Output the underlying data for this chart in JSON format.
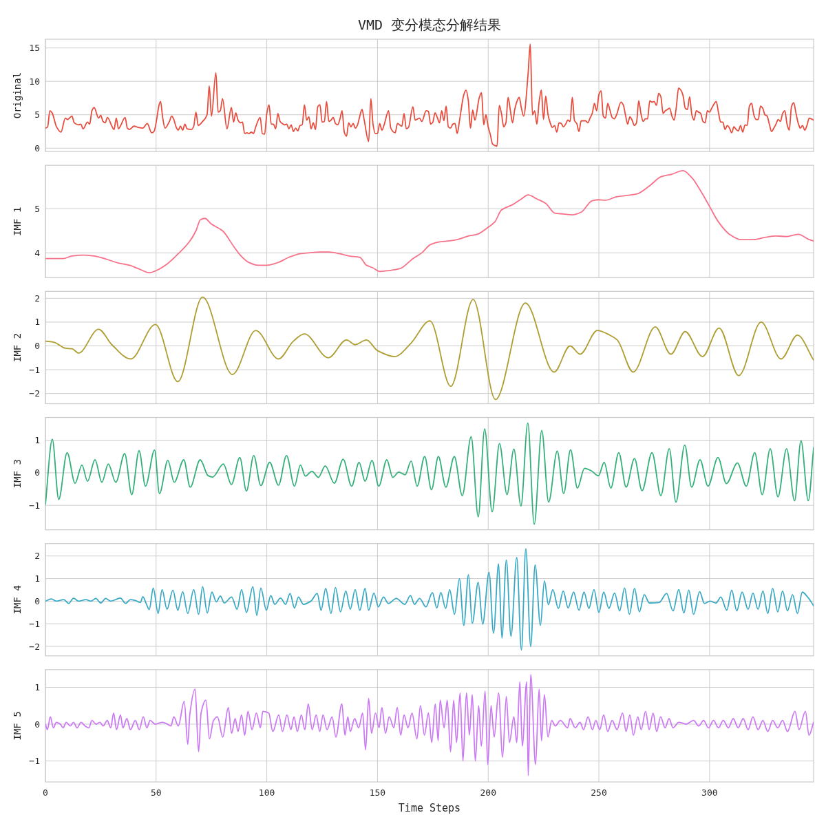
{
  "chart_data": [
    {
      "type": "line",
      "title": "VMD 变分模态分解结果",
      "ylabel": "Original",
      "xlim": [
        0,
        347
      ],
      "xticks": [
        0,
        50,
        100,
        150,
        200,
        250,
        300
      ],
      "ylim": [
        -0.5,
        16.3
      ],
      "yticks": [
        0,
        5,
        10,
        15
      ],
      "grid": true,
      "tick_labels": "y",
      "series": [
        {
          "color": "#e74c3c",
          "x": [
            0,
            1,
            2,
            3,
            5,
            7,
            9,
            10,
            12,
            13,
            15,
            16,
            17,
            19,
            20,
            21,
            22,
            24,
            25,
            26,
            27,
            28,
            30,
            31,
            32,
            33,
            34,
            36,
            37,
            38,
            40,
            42,
            44,
            46,
            48,
            49,
            52,
            53,
            54,
            56,
            57,
            58,
            59,
            60,
            61,
            62,
            63,
            64,
            66,
            67,
            68,
            69,
            71,
            73,
            74,
            75,
            77,
            78,
            79,
            80,
            82,
            84,
            85,
            86,
            87,
            88,
            89,
            90,
            91,
            92,
            93,
            94,
            95,
            97,
            98,
            99,
            100,
            101,
            102,
            103,
            104,
            105,
            106,
            107,
            108,
            109,
            110,
            111,
            112,
            113,
            114,
            115,
            116,
            117,
            118,
            119,
            120,
            121,
            122,
            123,
            124,
            125,
            126,
            127,
            128,
            129,
            130,
            131,
            132,
            133,
            134,
            135,
            136,
            137,
            138,
            139,
            140,
            141,
            142,
            143,
            144,
            146,
            147,
            148,
            149,
            150,
            151,
            152,
            153,
            155,
            156,
            158,
            159,
            161,
            162,
            163,
            164,
            166,
            167,
            169,
            170,
            172,
            173,
            174,
            175,
            176,
            177,
            178,
            179,
            180,
            181,
            182,
            183,
            184,
            185,
            186,
            187,
            189,
            190,
            191,
            192,
            193,
            194,
            196,
            197,
            198,
            199,
            200,
            201,
            202,
            203,
            204,
            205,
            206,
            207,
            208,
            209,
            210,
            211,
            212,
            213,
            214,
            215,
            216,
            218,
            219,
            220,
            221,
            222,
            223,
            224,
            225,
            226,
            227,
            228,
            229,
            230,
            231,
            232,
            233,
            234,
            235,
            236,
            237,
            238,
            239,
            240,
            241,
            242,
            244,
            245,
            246,
            247,
            248,
            249,
            250,
            251,
            252,
            253,
            254,
            255,
            256,
            257,
            258,
            260,
            261,
            262,
            263,
            264,
            265,
            266,
            267,
            268,
            269,
            270,
            271,
            272,
            273,
            274,
            275,
            276,
            277,
            278,
            279,
            280,
            281,
            282,
            283,
            284,
            285,
            286,
            287,
            288,
            289,
            290,
            291,
            292,
            293,
            294,
            295,
            296,
            297,
            298,
            299,
            300,
            301,
            302,
            303,
            304,
            305,
            306,
            307,
            308,
            309,
            310,
            311,
            312,
            313,
            314,
            315,
            316,
            317,
            318,
            319,
            320,
            321,
            322,
            323,
            324,
            325,
            326,
            327,
            328,
            329,
            330,
            331,
            332,
            333,
            334,
            335,
            336,
            337,
            338,
            339,
            340,
            341,
            342,
            343,
            344,
            345,
            347
          ],
          "values": [
            3.0,
            3.2,
            5.6,
            5.3,
            3.2,
            2.4,
            4.5,
            4.3,
            4.8,
            3.8,
            3.5,
            3.6,
            2.9,
            3.9,
            3.6,
            5.6,
            6.1,
            4.5,
            4.9,
            4.0,
            3.8,
            4.6,
            3.3,
            2.8,
            4.5,
            2.9,
            3.4,
            4.6,
            3.0,
            2.8,
            3.3,
            3.1,
            3.0,
            3.7,
            2.3,
            2.5,
            7.0,
            4.5,
            3.0,
            4.0,
            4.8,
            4.3,
            3.2,
            2.7,
            3.3,
            2.7,
            3.6,
            2.9,
            2.8,
            3.3,
            5.4,
            3.4,
            4.0,
            5.0,
            9.3,
            4.8,
            11.3,
            5.4,
            5.6,
            7.4,
            2.9,
            6.1,
            3.9,
            5.3,
            4.2,
            3.8,
            3.9,
            2.2,
            2.3,
            2.2,
            2.4,
            2.2,
            3.2,
            4.6,
            2.2,
            2.1,
            5.2,
            6.5,
            3.6,
            3.6,
            2.9,
            5.2,
            4.0,
            3.7,
            3.5,
            3.6,
            2.9,
            3.5,
            2.5,
            3.0,
            2.6,
            3.4,
            3.5,
            6.5,
            4.2,
            4.7,
            2.9,
            3.8,
            2.8,
            6.2,
            6.5,
            3.9,
            4.0,
            7.0,
            4.0,
            4.2,
            4.6,
            3.7,
            3.5,
            4.3,
            5.6,
            2.4,
            1.8,
            3.8,
            3.2,
            3.7,
            3.0,
            3.5,
            4.8,
            5.8,
            4.2,
            1.0,
            7.4,
            3.5,
            2.2,
            2.2,
            3.7,
            2.7,
            3.5,
            5.6,
            3.0,
            2.3,
            3.7,
            3.3,
            5.2,
            2.9,
            3.1,
            6.2,
            4.2,
            4.5,
            4.0,
            5.6,
            5.5,
            3.6,
            3.9,
            5.3,
            4.6,
            3.8,
            5.6,
            4.1,
            6.3,
            3.2,
            3.0,
            3.6,
            3.7,
            2.2,
            4.0,
            8.0,
            8.7,
            7.2,
            3.0,
            5.7,
            4.2,
            7.6,
            8.3,
            3.5,
            5.0,
            3.2,
            2.0,
            0.6,
            0.4,
            0.3,
            6.4,
            5.2,
            3.2,
            3.8,
            7.6,
            5.7,
            3.8,
            5.8,
            7.0,
            7.6,
            6.0,
            4.8,
            11.0,
            15.6,
            5.0,
            5.6,
            3.6,
            6.9,
            8.7,
            4.3,
            7.8,
            5.1,
            3.8,
            3.1,
            3.4,
            2.4,
            3.8,
            3.7,
            3.2,
            3.6,
            4.2,
            4.0,
            7.6,
            4.1,
            3.7,
            2.5,
            4.1,
            4.1,
            3.8,
            4.5,
            5.2,
            6.7,
            5.6,
            8.0,
            8.6,
            4.8,
            4.5,
            6.7,
            5.7,
            4.6,
            4.4,
            5.0,
            6.9,
            6.5,
            5.0,
            3.6,
            4.7,
            4.2,
            3.4,
            3.8,
            7.1,
            5.2,
            4.0,
            4.4,
            4.4,
            7.1,
            6.9,
            7.0,
            6.4,
            8.2,
            7.7,
            5.2,
            5.6,
            5.8,
            6.0,
            4.8,
            4.2,
            6.2,
            9.0,
            8.7,
            7.9,
            6.0,
            5.8,
            7.7,
            5.0,
            4.2,
            5.6,
            5.4,
            5.2,
            4.0,
            3.8,
            5.6,
            5.4,
            6.0,
            6.6,
            7.0,
            5.4,
            3.9,
            3.9,
            2.8,
            3.4,
            3.0,
            2.3,
            3.2,
            2.8,
            2.6,
            3.4,
            2.4,
            3.5,
            3.4,
            6.3,
            6.7,
            5.0,
            4.3,
            4.3,
            6.3,
            6.0,
            5.0,
            4.8,
            3.6,
            2.5,
            3.0,
            3.6,
            4.3,
            4.0,
            5.2,
            5.6,
            3.6,
            2.7,
            6.2,
            6.8,
            5.3,
            3.8,
            3.0,
            3.4,
            2.7,
            3.4,
            4.5,
            4.2
          ]
        }
      ]
    },
    {
      "type": "line",
      "ylabel": "IMF 1",
      "xlim": [
        0,
        347
      ],
      "xticks": [
        0,
        50,
        100,
        150,
        200,
        250,
        300
      ],
      "ylim": [
        3.44,
        5.98
      ],
      "yticks": [
        4,
        5
      ],
      "grid": true,
      "tick_labels": "y",
      "series": [
        {
          "color": "#f77189",
          "x": [
            0,
            8,
            12,
            17,
            22,
            28,
            33,
            38,
            43,
            47,
            50,
            55,
            60,
            65,
            68,
            70,
            72,
            75,
            80,
            85,
            88,
            92,
            96,
            100,
            105,
            110,
            115,
            119,
            124,
            128,
            133,
            137,
            142,
            145,
            148,
            151,
            155,
            160,
            166,
            170,
            174,
            178,
            182,
            186,
            191,
            195,
            200,
            203,
            206,
            211,
            215,
            218,
            222,
            226,
            230,
            234,
            238,
            242,
            247,
            250,
            253,
            258,
            263,
            267,
            273,
            278,
            283,
            288,
            292,
            296,
            300,
            304,
            309,
            314,
            320,
            325,
            330,
            335,
            340,
            345,
            347
          ],
          "values": [
            3.87,
            3.87,
            3.93,
            3.95,
            3.93,
            3.85,
            3.77,
            3.72,
            3.62,
            3.55,
            3.6,
            3.75,
            3.98,
            4.25,
            4.5,
            4.75,
            4.78,
            4.65,
            4.5,
            4.15,
            3.95,
            3.78,
            3.72,
            3.72,
            3.78,
            3.9,
            3.98,
            4.0,
            4.02,
            4.02,
            3.98,
            3.93,
            3.9,
            3.72,
            3.66,
            3.58,
            3.6,
            3.64,
            3.87,
            4.0,
            4.19,
            4.25,
            4.27,
            4.3,
            4.38,
            4.42,
            4.58,
            4.7,
            4.97,
            5.09,
            5.22,
            5.31,
            5.22,
            5.12,
            4.9,
            4.88,
            4.86,
            4.92,
            5.18,
            5.2,
            5.19,
            5.27,
            5.3,
            5.33,
            5.52,
            5.72,
            5.78,
            5.86,
            5.7,
            5.4,
            5.05,
            4.7,
            4.42,
            4.3,
            4.3,
            4.35,
            4.38,
            4.37,
            4.42,
            4.3,
            4.27
          ]
        }
      ]
    },
    {
      "type": "line",
      "ylabel": "IMF 2",
      "xlim": [
        0,
        347
      ],
      "xticks": [
        0,
        50,
        100,
        150,
        200,
        250,
        300
      ],
      "ylim": [
        -2.43,
        2.29
      ],
      "yticks": [
        -2,
        -1,
        0,
        1,
        2
      ],
      "grid": true,
      "tick_labels": "y",
      "series": [
        {
          "color": "#ae9d31",
          "x": [
            0,
            4,
            9,
            12,
            15,
            24,
            30,
            38.5,
            49.7,
            59.8,
            71,
            84.5,
            95,
            105.3,
            112,
            117,
            127.8,
            136,
            139.9,
            145,
            150,
            157.8,
            165,
            173.7,
            183.1,
            193.2,
            203.3,
            216.8,
            229.8,
            237,
            241.5,
            249.3,
            255,
            258.3,
            265.5,
            275.5,
            282.5,
            289,
            296.8,
            304.3,
            313.2,
            323.3,
            332.3,
            339.7,
            347
          ],
          "values": [
            0.2,
            0.15,
            -0.1,
            -0.12,
            -0.3,
            0.7,
            0.05,
            -0.55,
            0.9,
            -1.5,
            2.05,
            -1.2,
            0.65,
            -0.55,
            0.2,
            0.5,
            -0.5,
            0.25,
            0.05,
            0.25,
            -0.2,
            -0.45,
            0.1,
            1.05,
            -1.7,
            1.95,
            -2.25,
            1.8,
            -1.1,
            0.0,
            -0.35,
            0.65,
            0.45,
            0.25,
            -1.1,
            0.8,
            -0.35,
            0.6,
            -0.45,
            0.75,
            -1.25,
            1.0,
            -0.55,
            0.45,
            -0.6
          ]
        }
      ]
    },
    {
      "type": "line",
      "ylabel": "IMF 3",
      "xlim": [
        0,
        347
      ],
      "xticks": [
        0,
        50,
        100,
        150,
        200,
        250,
        300
      ],
      "ylim": [
        -1.75,
        1.7
      ],
      "yticks": [
        -1,
        0,
        1
      ],
      "grid": true,
      "tick_labels": "y",
      "series": [
        {
          "color": "#33b07a",
          "x": [
            0,
            3.1,
            6,
            9.8,
            13.4,
            16.5,
            19,
            22.4,
            25.5,
            28.4,
            31.8,
            35.8,
            39,
            42.3,
            45.2,
            49.3,
            51.5,
            55.3,
            58.2,
            62.5,
            65.4,
            69.9,
            73.5,
            75.5,
            80.4,
            84,
            87.8,
            90.8,
            94.1,
            97.3,
            101.3,
            105.3,
            108.9,
            112.5,
            115.2,
            117.4,
            120.4,
            123.3,
            126.4,
            130.5,
            134.5,
            138.3,
            141.7,
            144.4,
            147.5,
            150.6,
            154.2,
            156.9,
            159.6,
            162.5,
            165.2,
            167.9,
            171.3,
            174.4,
            177.5,
            180.9,
            184.7,
            188.3,
            192.3,
            195.5,
            198.4,
            201.8,
            205.1,
            208.5,
            211.6,
            214.8,
            217.9,
            220.8,
            224.2,
            227.3,
            231.2,
            234.1,
            237.2,
            240.3,
            243.5,
            246.6,
            249.8,
            252.4,
            255.4,
            259,
            262.3,
            266.1,
            269.5,
            274,
            278,
            281.8,
            284.8,
            288.8,
            291.9,
            295.7,
            299.3,
            303.8,
            307.6,
            312.6,
            316.6,
            320.4,
            323.8,
            327.4,
            330.9,
            334.8,
            338.4,
            341.3,
            344.6,
            347
          ],
          "values": [
            -0.97,
            1.03,
            -0.82,
            0.62,
            -0.32,
            0.24,
            -0.26,
            0.4,
            -0.29,
            0.27,
            -0.29,
            0.59,
            -0.67,
            0.68,
            -0.41,
            0.7,
            -0.64,
            0.38,
            -0.29,
            0.4,
            -0.44,
            0.4,
            -0.09,
            -0.13,
            0.27,
            -0.36,
            0.47,
            -0.56,
            0.53,
            -0.39,
            0.32,
            -0.38,
            0.53,
            -0.41,
            0.24,
            -0.1,
            0.05,
            -0.14,
            0.21,
            -0.32,
            0.42,
            -0.41,
            0.32,
            -0.26,
            0.38,
            -0.41,
            0.4,
            -0.14,
            0.02,
            -0.06,
            0.36,
            -0.41,
            0.5,
            -0.52,
            0.5,
            -0.44,
            0.5,
            -0.7,
            1.11,
            -1.35,
            1.35,
            -1.2,
            0.9,
            -0.67,
            0.73,
            -1.02,
            1.53,
            -1.58,
            1.3,
            -0.9,
            0.67,
            -0.64,
            0.71,
            -0.47,
            0.14,
            0.06,
            -0.09,
            0.32,
            -0.47,
            0.62,
            -0.44,
            0.44,
            -0.55,
            0.62,
            -0.7,
            0.74,
            -0.9,
            0.85,
            -0.44,
            0.4,
            -0.41,
            0.47,
            -0.33,
            0.3,
            -0.41,
            0.62,
            -0.67,
            0.74,
            -0.74,
            0.74,
            -0.86,
            0.99,
            -0.86,
            0.77
          ]
        }
      ]
    },
    {
      "type": "line",
      "ylabel": "IMF 4",
      "xlim": [
        0,
        347
      ],
      "xticks": [
        0,
        50,
        100,
        150,
        200,
        250,
        300
      ],
      "ylim": [
        -2.42,
        2.55
      ],
      "yticks": [
        -2,
        -1,
        0,
        1,
        2
      ],
      "grid": true,
      "tick_labels": "y",
      "series": [
        {
          "color": "#38a9c5",
          "x": [
            0,
            2.7,
            4.9,
            8.3,
            10.5,
            12.7,
            15,
            18.3,
            20.5,
            22.8,
            25,
            27.2,
            29.5,
            31.7,
            33.9,
            36.2,
            38.4,
            40.6,
            42.9,
            44,
            45.5,
            46.9,
            48.7,
            50.9,
            52.7,
            54.9,
            57.6,
            59.8,
            62,
            64.3,
            67,
            69.2,
            71,
            73.1,
            75.2,
            77.2,
            79,
            80.8,
            84.1,
            86.6,
            88.6,
            90.8,
            93.7,
            95.5,
            97.3,
            99.8,
            101.8,
            103.6,
            106.2,
            108.5,
            110.5,
            112.5,
            114.3,
            116.5,
            119.9,
            122.8,
            124.5,
            126.6,
            129,
            131,
            133.3,
            135.7,
            137.7,
            139.9,
            142,
            144.4,
            146,
            148.4,
            150.4,
            152.7,
            154.9,
            158.5,
            162.3,
            164.9,
            166.7,
            169,
            171.9,
            174.8,
            176.8,
            178.6,
            180.8,
            182.6,
            184.8,
            187,
            189,
            191.1,
            192.8,
            195.5,
            197.5,
            200.4,
            202.4,
            204.7,
            206.2,
            208.2,
            210.3,
            212.9,
            215,
            217,
            219.2,
            221.2,
            223.6,
            225.4,
            227.2,
            229.2,
            231.7,
            233.9,
            236.1,
            238.6,
            241,
            243.3,
            245.5,
            247.8,
            250,
            252.2,
            254.5,
            257.1,
            259.4,
            261.6,
            263.8,
            266.1,
            268.3,
            270.5,
            272.8,
            277.2,
            280.6,
            283.5,
            286.1,
            288.4,
            290.6,
            292.8,
            295.5,
            297.7,
            300.2,
            302.9,
            305.1,
            307.8,
            310,
            312.3,
            314.7,
            317.4,
            319.6,
            321.9,
            324.1,
            326.3,
            328.5,
            330.8,
            333,
            335.2,
            337.5,
            339.7,
            341.9,
            344.2,
            347
          ],
          "values": [
            0,
            0.1,
            0,
            0.07,
            -0.1,
            0.13,
            0,
            0.07,
            0,
            0.12,
            -0.08,
            0.12,
            0,
            0.07,
            0.14,
            -0.1,
            0.07,
            0.03,
            -0.06,
            0.2,
            -0.1,
            -0.37,
            0.58,
            -0.54,
            0.51,
            -0.36,
            0.49,
            -0.4,
            0.42,
            -0.54,
            0.51,
            -0.58,
            0.64,
            -0.52,
            0.4,
            -0.03,
            0.23,
            -0.08,
            0.18,
            -0.36,
            0.51,
            -0.5,
            0.64,
            -0.63,
            0.58,
            -0.4,
            0.25,
            -0.14,
            0.14,
            -0.14,
            0.34,
            -0.3,
            0.18,
            -0.14,
            0.0,
            0.34,
            -0.4,
            0.56,
            -0.54,
            0.6,
            -0.47,
            0.45,
            -0.36,
            0.51,
            -0.4,
            0.56,
            -0.4,
            0.36,
            -0.25,
            0.18,
            -0.1,
            0.12,
            -0.14,
            0.25,
            -0.14,
            0.12,
            -0.25,
            0.38,
            -0.3,
            0.38,
            -0.32,
            0.51,
            -0.58,
            0.99,
            -1.07,
            1.17,
            -0.98,
            0.84,
            -1.02,
            1.28,
            -1.42,
            1.65,
            -1.63,
            1.82,
            -1.55,
            1.93,
            -2.16,
            2.32,
            -2.0,
            1.61,
            -1.07,
            0.9,
            -0.15,
            0.51,
            -0.32,
            0.45,
            -0.3,
            0.4,
            -0.4,
            0.4,
            -0.32,
            0.51,
            -0.5,
            0.4,
            -0.32,
            0.36,
            -0.43,
            0.58,
            -0.58,
            0.56,
            -0.47,
            0.29,
            -0.08,
            -0.06,
            0.34,
            -0.43,
            0.51,
            -0.52,
            0.49,
            -0.58,
            0.42,
            -0.1,
            0.0,
            -0.08,
            0.18,
            -0.4,
            0.49,
            -0.43,
            0.4,
            -0.36,
            0.36,
            -0.36,
            0.45,
            -0.54,
            0.56,
            -0.47,
            0.45,
            -0.43,
            0.29,
            -0.54,
            0.4,
            0.2,
            -0.2
          ]
        }
      ]
    },
    {
      "type": "line",
      "ylabel": "IMF 5",
      "xlabel": "Time Steps",
      "xlim": [
        0,
        347
      ],
      "xticks": [
        0,
        50,
        100,
        150,
        200,
        250,
        300
      ],
      "ylim": [
        -1.57,
        1.48
      ],
      "yticks": [
        -1,
        0,
        1
      ],
      "grid": true,
      "series": [
        {
          "color": "#cc7af4",
          "x": [
            0,
            0.9,
            2.2,
            3.6,
            4.9,
            6.7,
            8,
            9.4,
            11.2,
            12.7,
            14.3,
            16.1,
            17.9,
            19.6,
            21,
            22.8,
            24.6,
            26.1,
            27.9,
            29.5,
            30.8,
            32.1,
            33.9,
            35,
            36.8,
            38.4,
            40.6,
            42.4,
            44.2,
            45.8,
            47.3,
            49.6,
            52.9,
            55.1,
            56.7,
            58,
            60,
            62.7,
            64.3,
            65.2,
            67.6,
            69.2,
            70.3,
            72.5,
            74.1,
            75.9,
            77.7,
            80.1,
            82.6,
            84.1,
            85.7,
            87,
            88.6,
            90,
            91.5,
            93.3,
            95.3,
            97.1,
            98.2,
            100.9,
            102.7,
            105.4,
            107.1,
            109.1,
            110.9,
            112.3,
            113.8,
            115.6,
            117.2,
            118.7,
            120.5,
            122.3,
            123.9,
            125.4,
            127.2,
            129.5,
            131.2,
            133.9,
            135.3,
            136.6,
            137.7,
            139.7,
            141.5,
            143.3,
            144.6,
            146,
            147.3,
            149.1,
            150.7,
            152,
            153.6,
            155.3,
            157.4,
            158.9,
            160.5,
            162,
            163.8,
            165.6,
            167.8,
            169.4,
            171.2,
            173,
            174.5,
            176.1,
            177.4,
            178.3,
            180.1,
            181.5,
            183,
            184.4,
            185.7,
            187.3,
            188.6,
            190.2,
            191.5,
            192.8,
            194.2,
            195.7,
            196.9,
            198.6,
            199.8,
            201.3,
            202.7,
            204.7,
            206.5,
            208.2,
            209.6,
            211.6,
            212.9,
            214.3,
            215.4,
            217.4,
            218.1,
            219.2,
            221.4,
            223,
            224.1,
            225.4,
            227,
            228.7,
            230.3,
            232.6,
            235.9,
            237,
            239.3,
            241.5,
            243.1,
            245.1,
            247.1,
            248.6,
            250.4,
            252.2,
            254,
            256,
            258.2,
            260.7,
            262.3,
            264,
            265.6,
            267.6,
            269.1,
            271.1,
            272.7,
            274.5,
            276.1,
            277.9,
            279.9,
            281.7,
            283.5,
            286.1,
            289.5,
            292.8,
            295.1,
            297.3,
            299.5,
            301.8,
            304,
            306.2,
            308.5,
            310.7,
            312.9,
            315.2,
            317.4,
            319.6,
            321.9,
            324.1,
            326.3,
            328.5,
            330.8,
            333,
            335.2,
            338.6,
            340.4,
            343.3,
            344.9,
            347
          ],
          "values": [
            0,
            -0.15,
            0.2,
            -0.1,
            0.05,
            0,
            -0.1,
            0.05,
            -0.05,
            0.05,
            -0.1,
            0.05,
            -0.05,
            -0.1,
            0.1,
            0,
            0.05,
            -0.05,
            0.1,
            -0.1,
            0.3,
            -0.15,
            0.25,
            -0.1,
            0.15,
            -0.15,
            0.1,
            -0.15,
            0.2,
            -0.1,
            0.1,
            0,
            0.05,
            0,
            -0.05,
            0.2,
            -0.05,
            0.62,
            -0.55,
            0.25,
            0.95,
            -0.75,
            0.3,
            0.65,
            -0.4,
            0.1,
            0.2,
            -0.35,
            0.45,
            -0.25,
            0.15,
            -0.2,
            0.25,
            -0.3,
            0.35,
            -0.15,
            0.3,
            -0.1,
            0.35,
            0.3,
            -0.2,
            0.25,
            -0.2,
            0.25,
            -0.15,
            0.2,
            -0.2,
            0.25,
            -0.15,
            0.55,
            -0.15,
            0.25,
            -0.2,
            0.25,
            -0.15,
            0.2,
            -0.35,
            0.55,
            -0.3,
            0.2,
            -0.2,
            0.15,
            -0.1,
            0.3,
            -0.7,
            0.7,
            -0.25,
            0.3,
            -0.1,
            0.45,
            -0.25,
            0.2,
            -0.1,
            0.45,
            -0.3,
            0.25,
            -0.1,
            0.3,
            -0.4,
            0.5,
            -0.3,
            0.3,
            -0.5,
            0.55,
            -0.45,
            0.65,
            -0.1,
            0.65,
            -0.75,
            0.65,
            -0.5,
            0.85,
            -1.0,
            0.85,
            -0.3,
            0.8,
            -1.0,
            0.5,
            -0.6,
            0.9,
            -1.1,
            0.5,
            -0.35,
            0.85,
            -0.9,
            0.75,
            -0.5,
            0.2,
            -0.5,
            1.15,
            -0.6,
            1.15,
            -1.4,
            1.35,
            -1.1,
            0.95,
            -0.45,
            0.8,
            -0.35,
            0.1,
            -0.05,
            0.1,
            -0.1,
            0.15,
            -0.1,
            0.05,
            -0.15,
            0.2,
            -0.15,
            0.1,
            -0.15,
            0.25,
            -0.2,
            0.1,
            -0.15,
            0.3,
            -0.2,
            0.25,
            -0.3,
            0.2,
            -0.15,
            0.35,
            -0.15,
            0.3,
            -0.2,
            0.2,
            -0.1,
            0.15,
            -0.1,
            0.05,
            0,
            0.1,
            -0.05,
            0.1,
            -0.1,
            0.1,
            -0.1,
            0.1,
            -0.1,
            0.15,
            -0.1,
            0.15,
            -0.15,
            0.2,
            -0.15,
            0.1,
            -0.2,
            0.1,
            -0.1,
            0.1,
            -0.2,
            0.35,
            -0.15,
            0.35,
            -0.3,
            0.05
          ]
        }
      ]
    }
  ]
}
